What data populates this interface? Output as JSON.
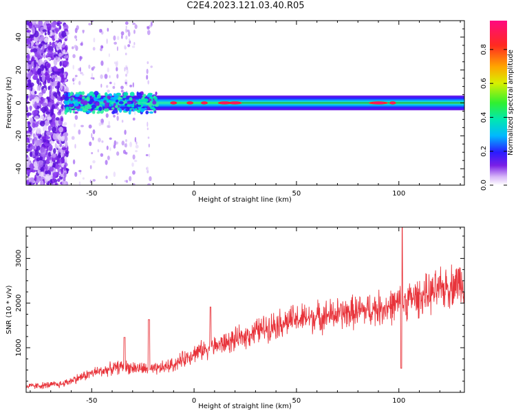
{
  "title": "C2E4.2023.121.03.40.R05",
  "chart_data": [
    {
      "type": "heatmap",
      "xlabel": "Height of straight line (km)",
      "ylabel": "Frequency (Hz)",
      "xlim": [
        -82,
        132
      ],
      "ylim": [
        -50,
        50
      ],
      "xticks": [
        -50,
        0,
        50,
        100
      ],
      "yticks": [
        -40,
        -20,
        0,
        20,
        40
      ],
      "colorbar": {
        "label": "Normalized spectral amplitude",
        "range": [
          0,
          0.97
        ],
        "ticks": [
          "0.0",
          "0.2",
          "0.4",
          "0.6",
          "0.8"
        ]
      },
      "features": {
        "noisy_region_x": [
          -82,
          -62
        ],
        "scattered_region_x": [
          -62,
          -20
        ],
        "band_center_hz": 0,
        "band_halfwidth_hz": [
          3,
          5
        ],
        "hot_spots_x": [
          -10,
          -2,
          5,
          15,
          20,
          90,
          97
        ]
      },
      "grid": false,
      "legend": "colorbar-right"
    },
    {
      "type": "line",
      "xlabel": "Height of straight line (km)",
      "ylabel": "SNR (10 * v/v)",
      "xlim": [
        -82,
        132
      ],
      "ylim": [
        0,
        3700
      ],
      "xticks": [
        -50,
        0,
        50,
        100
      ],
      "yticks": [
        1000,
        2000,
        3000
      ],
      "series": [
        {
          "color": "#e8333a",
          "trend_x": [
            -82,
            -65,
            -50,
            -35,
            -20,
            -10,
            0,
            10,
            20,
            30,
            40,
            50,
            60,
            70,
            80,
            90,
            98,
            105,
            115,
            132
          ],
          "trend_y": [
            130,
            180,
            430,
            580,
            500,
            620,
            880,
            1030,
            1170,
            1360,
            1530,
            1630,
            1690,
            1750,
            1810,
            1880,
            1940,
            2080,
            2200,
            2520
          ],
          "spikes": [
            {
              "x": -34,
              "y": 1230
            },
            {
              "x": -22,
              "y": 1630
            },
            {
              "x": 8,
              "y": 1910
            },
            {
              "x": 101.5,
              "y": 3690
            },
            {
              "x": 101.2,
              "y": 540
            }
          ]
        }
      ],
      "grid": false,
      "legend": "none"
    }
  ]
}
